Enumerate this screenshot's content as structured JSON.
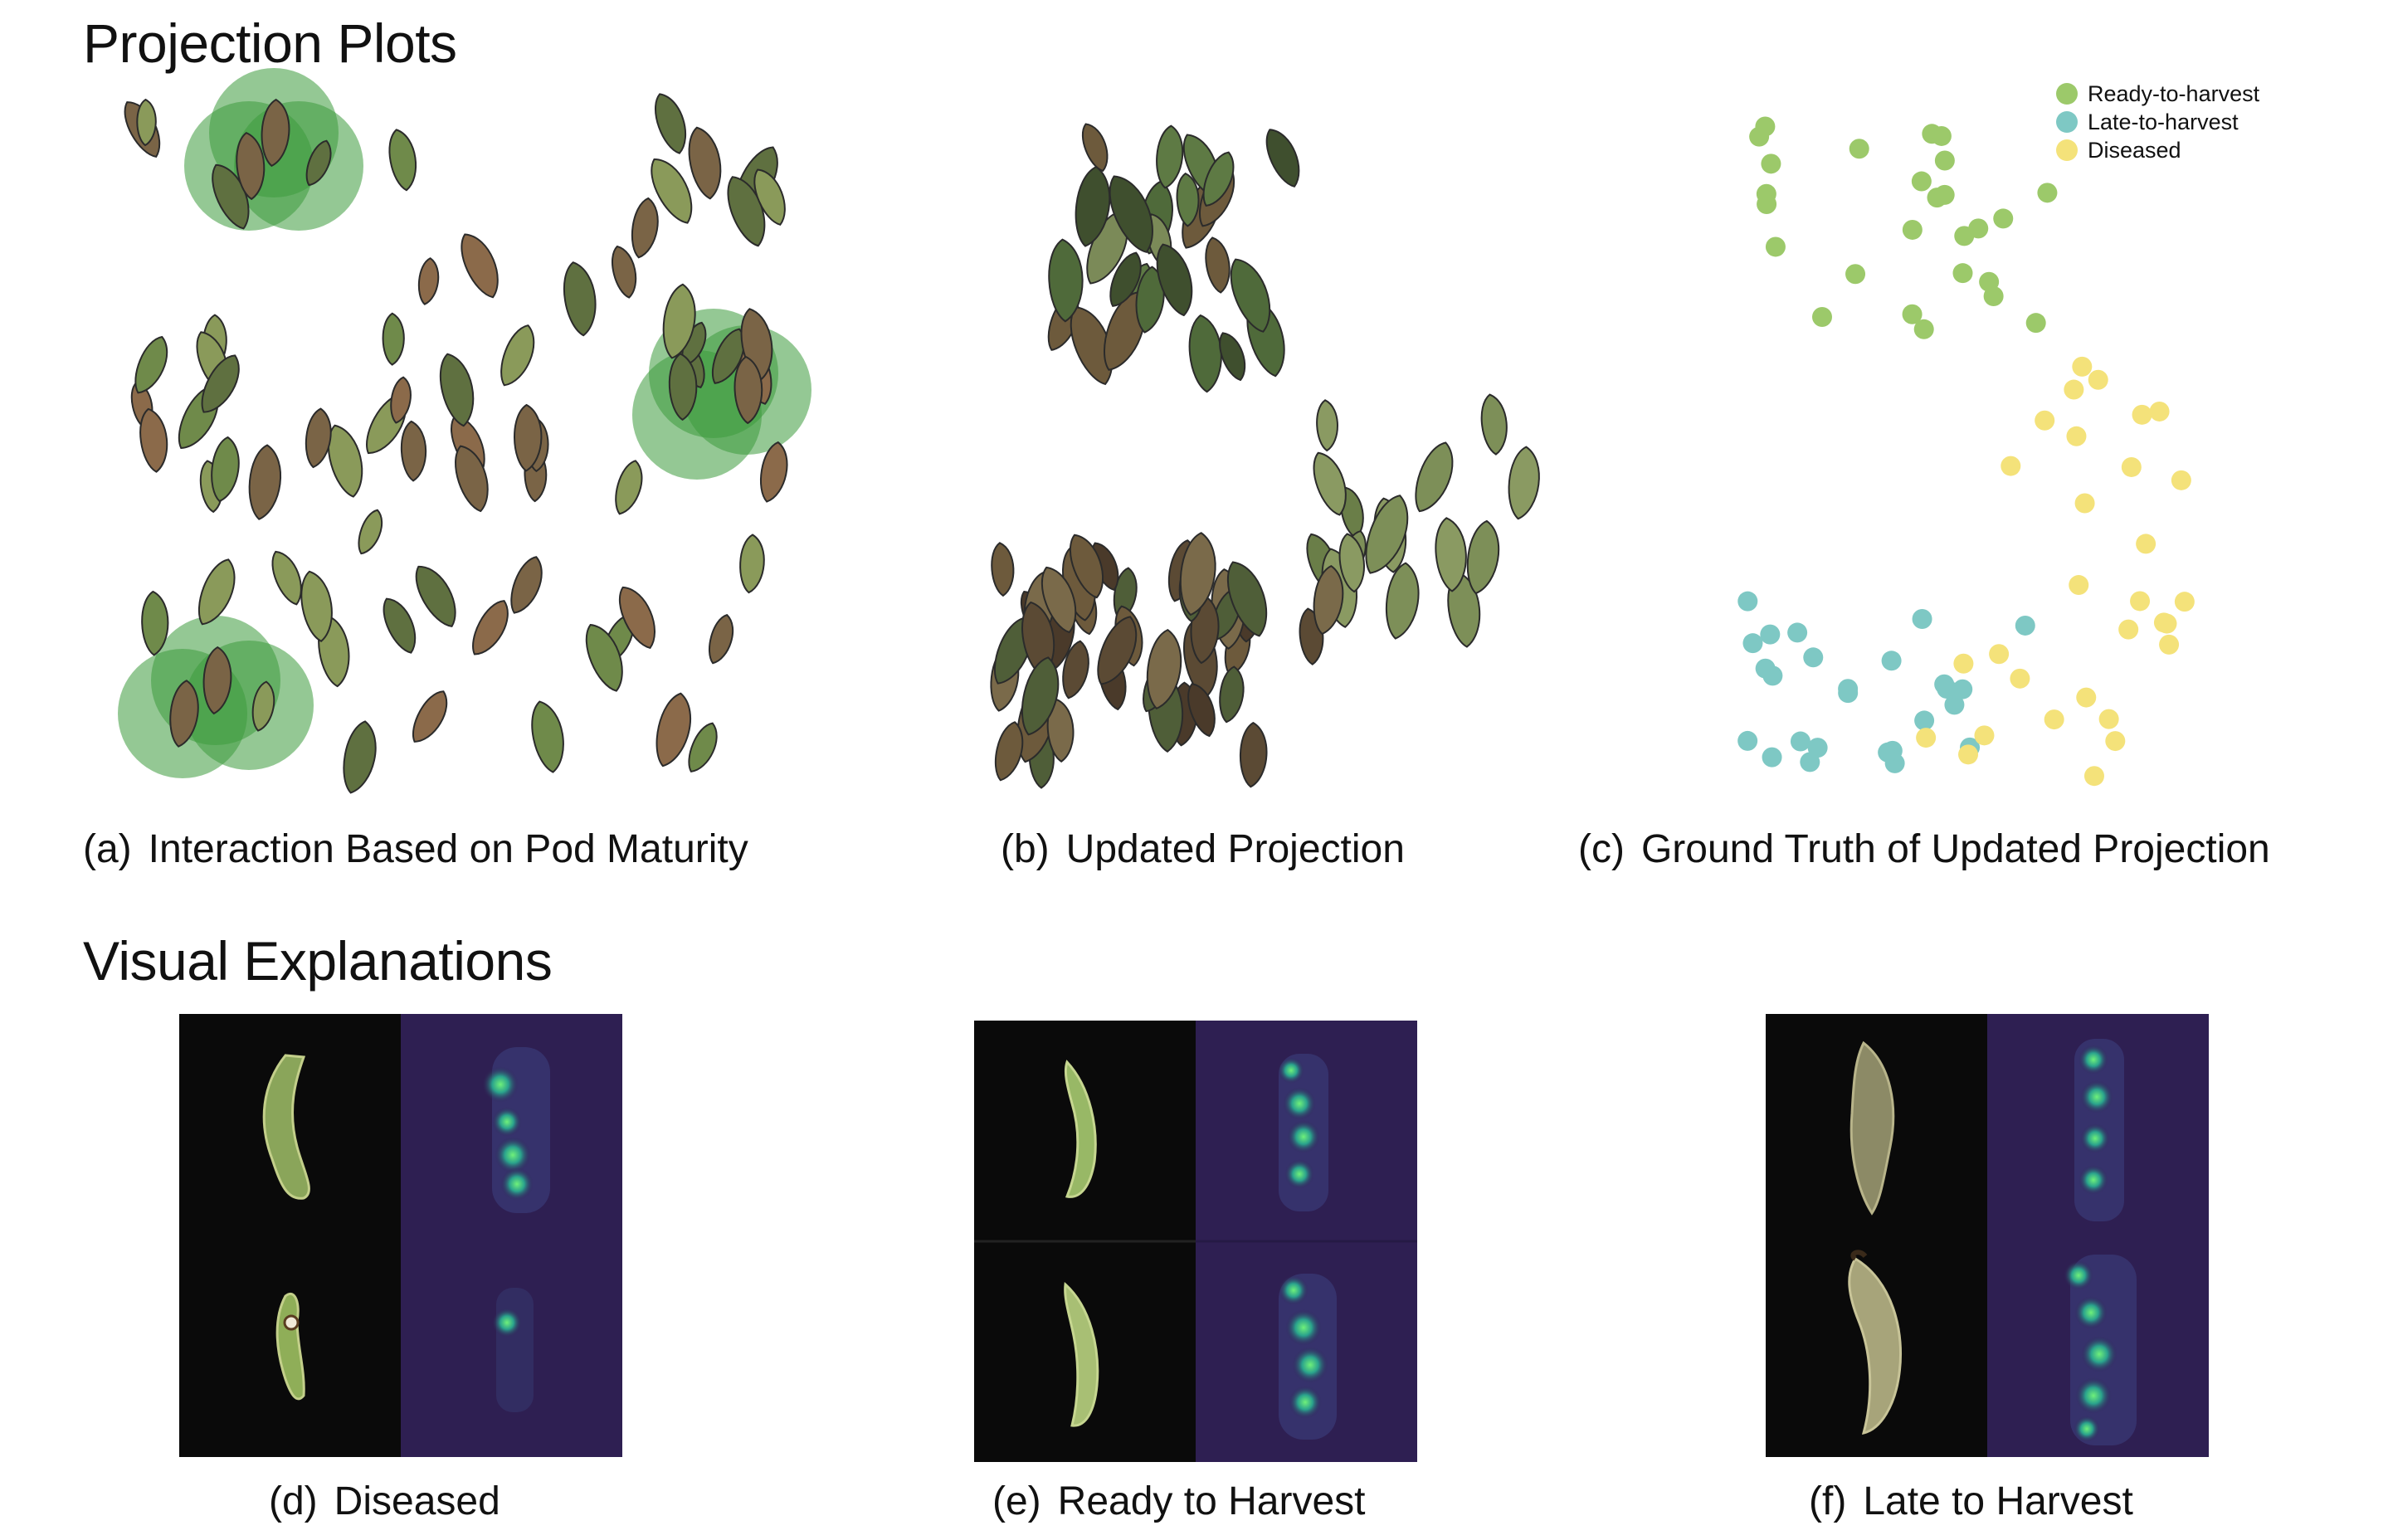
{
  "figure": {
    "sections": {
      "projection_plots": "Projection Plots",
      "visual_explanations": "Visual Explanations"
    },
    "captions": {
      "a": {
        "label": "(a)",
        "text": "Interaction Based on Pod Maturity"
      },
      "b": {
        "label": "(b)",
        "text": "Updated Projection"
      },
      "c": {
        "label": "(c)",
        "text": "Ground Truth of Updated Projection"
      },
      "d": {
        "label": "(d)",
        "text": "Diseased"
      },
      "e": {
        "label": "(e)",
        "text": "Ready to Harvest"
      },
      "f": {
        "label": "(f)",
        "text": "Late to Harvest"
      }
    },
    "legend": [
      {
        "label": "Ready-to-harvest",
        "color": "#9cc96a"
      },
      {
        "label": "Late-to-harvest",
        "color": "#7ec8c4"
      },
      {
        "label": "Diseased",
        "color": "#f4e27a"
      }
    ],
    "colors": {
      "selection_halo": "#3c9b3c",
      "pod_green": "#6f8a4a",
      "pod_brown": "#7a6446",
      "heatmap_bg": "#2e1f52",
      "heatmap_hot": "#39d98a"
    }
  }
}
